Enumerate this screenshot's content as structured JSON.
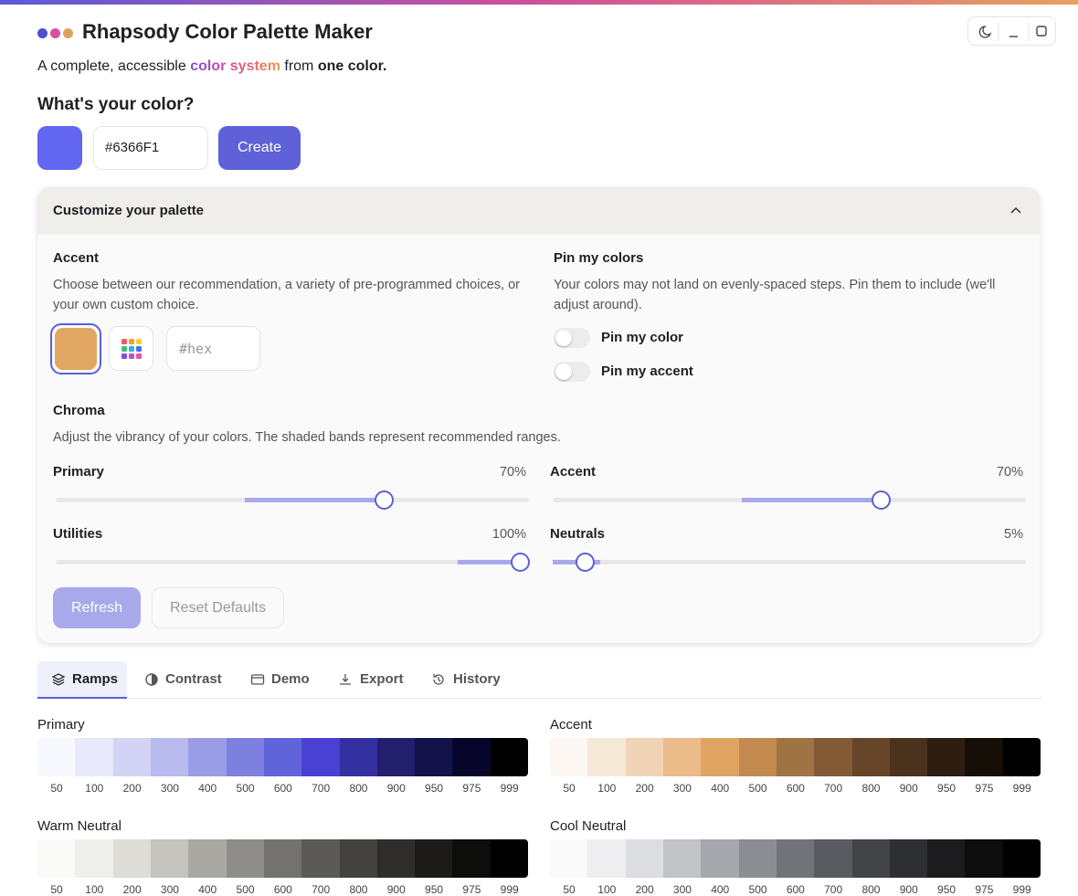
{
  "header": {
    "title": "Rhapsody Color Palette Maker",
    "tagline": {
      "start": "A complete, accessible ",
      "highlight": "color system",
      "middle": " from ",
      "bold": "one color."
    }
  },
  "picker": {
    "question": "What's your color?",
    "color": "#6366F1",
    "hex_value": "#6366F1",
    "button": "Create"
  },
  "customize": {
    "title": "Customize your palette",
    "accent": {
      "title": "Accent",
      "description": "Choose between our recommendation, a variety of pre-programmed choices, or your own custom choice.",
      "swatch_color": "#E0A662",
      "hex_placeholder": "#hex"
    },
    "pin": {
      "title": "Pin my colors",
      "description": "Your colors may not land on evenly-spaced steps. Pin them to include (we'll adjust around).",
      "toggles": [
        "Pin my color",
        "Pin my accent"
      ]
    },
    "chroma": {
      "title": "Chroma",
      "description": "Adjust the vibrancy of your colors. The shaded bands represent recommended ranges.",
      "sliders": [
        {
          "label": "Primary",
          "value": 70,
          "value_label": "70%"
        },
        {
          "label": "Accent",
          "value": 70,
          "value_label": "70%"
        },
        {
          "label": "Utilities",
          "value": 100,
          "value_label": "100%"
        },
        {
          "label": "Neutrals",
          "value": 5,
          "value_label": "5%"
        }
      ]
    },
    "buttons": [
      "Refresh",
      "Reset Defaults"
    ]
  },
  "tabs": [
    "Ramps",
    "Contrast",
    "Demo",
    "Export",
    "History"
  ],
  "ramps": {
    "steps": [
      "50",
      "100",
      "200",
      "300",
      "400",
      "500",
      "600",
      "700",
      "800",
      "900",
      "950",
      "975",
      "999"
    ],
    "items": [
      {
        "name": "Primary",
        "colors": [
          "#f7f7fe",
          "#e8e9fa",
          "#d3d4f5",
          "#b8baee",
          "#9a9de6",
          "#7d80de",
          "#6164d9",
          "#4a40d4",
          "#3530a0",
          "#221f6e",
          "#14124a",
          "#07062a",
          "#000000"
        ]
      },
      {
        "name": "Accent",
        "colors": [
          "#fcf7f2",
          "#f6e8d6",
          "#f1d4b5",
          "#ebbb8a",
          "#e0a462",
          "#c28a4f",
          "#a07345",
          "#825b36",
          "#664529",
          "#4a321d",
          "#2e1e11",
          "#150e07",
          "#000000"
        ]
      },
      {
        "name": "Warm Neutral",
        "colors": [
          "#f9f9f7",
          "#eeeeea",
          "#dedcd6",
          "#c4c3be",
          "#a9a8a3",
          "#8e8d89",
          "#73726f",
          "#5a5956",
          "#43423f",
          "#2e2d2b",
          "#1c1b1a",
          "#0d0d0c",
          "#000000"
        ]
      },
      {
        "name": "Cool Neutral",
        "colors": [
          "#f9f9fa",
          "#eeeef0",
          "#dcdde0",
          "#c2c3c7",
          "#a7a8ad",
          "#8c8d93",
          "#727379",
          "#5a5b60",
          "#434448",
          "#2e2f32",
          "#1c1c1e",
          "#0d0d0e",
          "#000000"
        ]
      }
    ]
  }
}
